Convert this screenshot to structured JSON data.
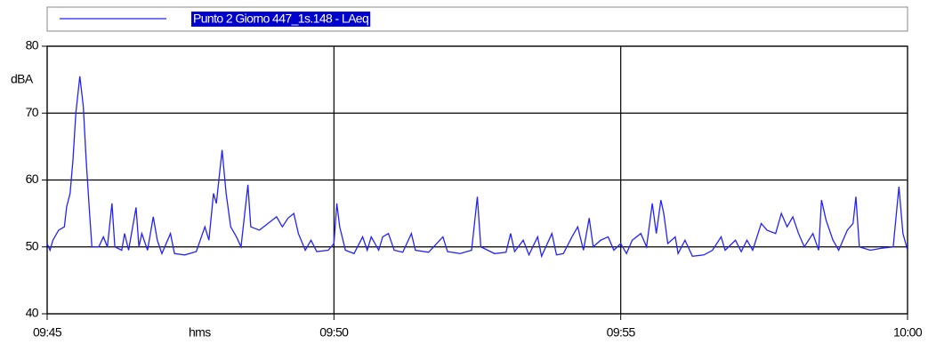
{
  "chart_data": {
    "type": "line",
    "x_label": "hms",
    "y_label": "dBA",
    "xlim": [
      585,
      600
    ],
    "xticks": [
      {
        "value": 585,
        "label": "09:45"
      },
      {
        "value": 590,
        "label": "09:50"
      },
      {
        "value": 595,
        "label": "09:55"
      },
      {
        "value": 600,
        "label": "10:00"
      }
    ],
    "ylim": [
      40,
      80
    ],
    "yticks": [
      40,
      50,
      60,
      70,
      80
    ],
    "grid": true,
    "x": [
      585.0,
      585.05,
      585.1,
      585.2,
      585.3,
      585.34,
      585.4,
      585.45,
      585.5,
      585.57,
      585.63,
      585.68,
      585.74,
      585.78,
      585.9,
      585.98,
      586.05,
      586.13,
      586.18,
      586.3,
      586.35,
      586.42,
      586.55,
      586.6,
      586.65,
      586.75,
      586.85,
      586.92,
      587.0,
      587.15,
      587.22,
      587.4,
      587.6,
      587.75,
      587.82,
      587.9,
      587.95,
      588.05,
      588.12,
      588.2,
      588.3,
      588.38,
      588.5,
      588.55,
      588.7,
      588.85,
      589.0,
      589.1,
      589.2,
      589.3,
      589.38,
      589.5,
      589.6,
      589.7,
      589.9,
      590.0,
      590.05,
      590.1,
      590.2,
      590.35,
      590.5,
      590.58,
      590.65,
      590.78,
      590.85,
      590.95,
      591.05,
      591.2,
      591.35,
      591.42,
      591.65,
      591.9,
      591.98,
      592.2,
      592.4,
      592.5,
      592.56,
      592.8,
      593.0,
      593.08,
      593.15,
      593.3,
      593.4,
      593.55,
      593.62,
      593.8,
      593.88,
      594.0,
      594.15,
      594.25,
      594.35,
      594.45,
      594.52,
      594.65,
      594.78,
      594.88,
      595.0,
      595.1,
      595.2,
      595.35,
      595.45,
      595.55,
      595.62,
      595.7,
      595.75,
      595.82,
      595.95,
      596.0,
      596.12,
      596.25,
      596.45,
      596.6,
      596.75,
      596.82,
      597.0,
      597.1,
      597.2,
      597.3,
      597.45,
      597.55,
      597.7,
      597.8,
      597.9,
      598.0,
      598.1,
      598.2,
      598.35,
      598.45,
      598.5,
      598.58,
      598.7,
      598.8,
      598.95,
      599.05,
      599.1,
      599.16,
      599.35,
      599.55,
      599.75,
      599.85,
      599.92,
      600.0
    ],
    "series": [
      {
        "name": "Punto 2 Giorno 447_1s.148 - LAeq",
        "color": "#2222ff",
        "values": [
          50.5,
          49.5,
          51,
          52.5,
          53,
          56,
          58,
          63,
          70,
          75.5,
          71,
          63,
          55,
          50,
          50,
          51.5,
          50,
          56.5,
          50,
          49.5,
          52,
          49.5,
          55.9,
          50,
          52,
          49.5,
          54.5,
          51,
          49,
          52,
          49,
          48.8,
          49.3,
          53,
          51,
          58,
          56.5,
          64.5,
          58,
          53,
          51.5,
          50,
          59.3,
          53,
          52.5,
          53.5,
          54.5,
          53,
          54.3,
          55,
          52,
          49.5,
          51,
          49.3,
          49.5,
          50.5,
          56.5,
          53,
          49.5,
          49,
          51.5,
          49.5,
          51.5,
          49.5,
          51.5,
          52,
          49.5,
          49.2,
          52,
          49.5,
          49.2,
          51.5,
          49.3,
          49,
          49.5,
          57.5,
          50,
          49,
          49.2,
          52,
          49.3,
          51,
          48.8,
          51.5,
          48.6,
          52,
          48.8,
          49,
          51.5,
          53,
          49.5,
          54.3,
          50,
          51,
          51.5,
          49.5,
          50.5,
          49,
          51,
          52,
          50,
          56.5,
          52,
          57,
          55,
          50.5,
          51.5,
          49,
          51,
          48.6,
          48.8,
          49.5,
          51.5,
          49.5,
          51,
          49.3,
          51,
          49.5,
          53.5,
          52.5,
          52,
          55,
          53,
          54.5,
          52,
          50,
          52,
          49.5,
          57,
          54,
          51,
          49.5,
          52.5,
          53.5,
          57.5,
          50,
          49.5,
          49.8,
          50,
          59,
          52,
          49.5
        ]
      }
    ]
  }
}
